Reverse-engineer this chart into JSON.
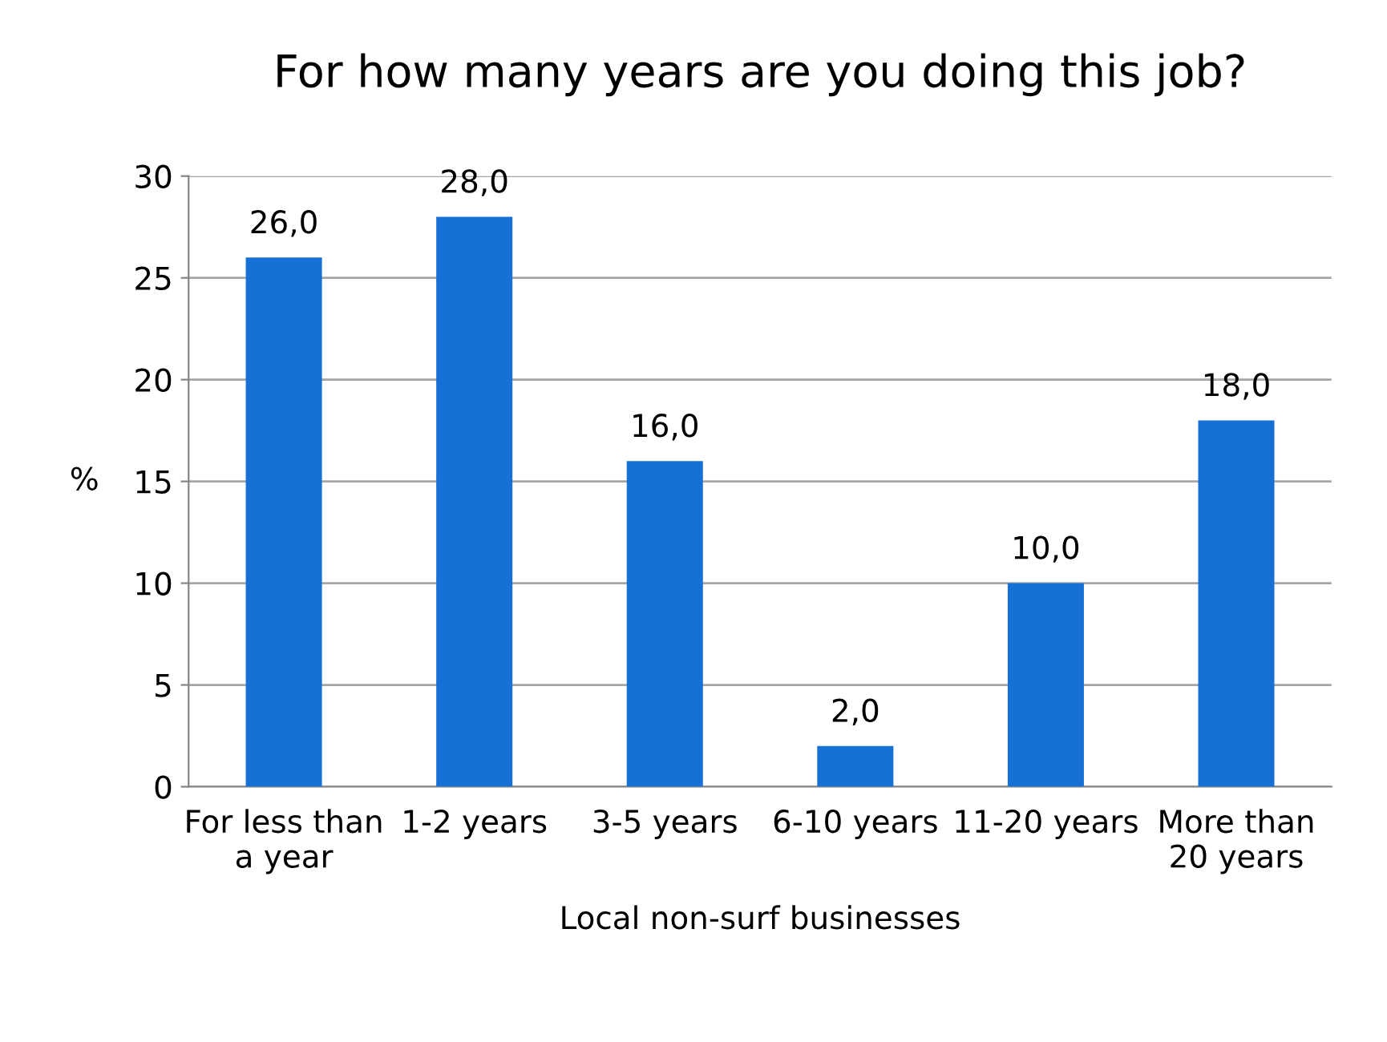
{
  "chart_data": {
    "type": "bar",
    "title": "For how many years are you doing this job?",
    "xlabel": "Local non-surf businesses",
    "ylabel": "%",
    "categories": [
      "For less than\na year",
      "1-2 years",
      "3-5 years",
      "6-10 years",
      "11-20 years",
      "More than\n20 years"
    ],
    "values": [
      26,
      28,
      16,
      2,
      10,
      18
    ],
    "value_labels": [
      "26,0",
      "28,0",
      "16,0",
      "2,0",
      "10,0",
      "18,0"
    ],
    "color": "#1670d6",
    "ylim": [
      0,
      30
    ],
    "yticks": [
      0,
      5,
      10,
      15,
      20,
      25,
      30
    ],
    "grid": "y",
    "legend": false
  }
}
